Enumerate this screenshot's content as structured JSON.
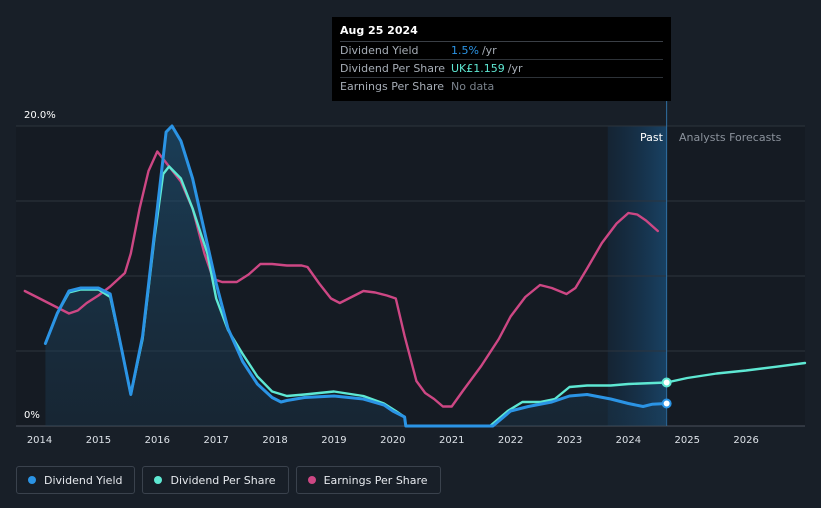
{
  "chart_data": {
    "type": "line",
    "x_range": [
      2013.6,
      2027.0
    ],
    "ylim": [
      0,
      20
    ],
    "y_tick_labels": [
      "20.0%",
      "0%"
    ],
    "x_tick_labels": [
      "2014",
      "2015",
      "2016",
      "2017",
      "2018",
      "2019",
      "2020",
      "2021",
      "2022",
      "2023",
      "2024",
      "2025",
      "2026"
    ],
    "past_label": "Past",
    "forecast_label": "Analysts Forecasts",
    "forecast_start": 2024.65,
    "past_shade_start": 2023.65,
    "series": [
      {
        "name": "Dividend Yield",
        "color": "#2b94e5",
        "points": [
          [
            2014.1,
            5.5
          ],
          [
            2014.3,
            7.5
          ],
          [
            2014.5,
            9.0
          ],
          [
            2014.7,
            9.2
          ],
          [
            2015.0,
            9.2
          ],
          [
            2015.2,
            8.8
          ],
          [
            2015.4,
            5.0
          ],
          [
            2015.55,
            2.1
          ],
          [
            2015.75,
            6.0
          ],
          [
            2016.0,
            14.5
          ],
          [
            2016.15,
            19.6
          ],
          [
            2016.25,
            20.0
          ],
          [
            2016.4,
            19.0
          ],
          [
            2016.6,
            16.5
          ],
          [
            2016.8,
            13.0
          ],
          [
            2017.0,
            9.5
          ],
          [
            2017.2,
            6.5
          ],
          [
            2017.45,
            4.3
          ],
          [
            2017.7,
            2.8
          ],
          [
            2017.95,
            1.9
          ],
          [
            2018.1,
            1.6
          ],
          [
            2018.2,
            1.7
          ],
          [
            2018.5,
            1.9
          ],
          [
            2019.0,
            2.0
          ],
          [
            2019.5,
            1.8
          ],
          [
            2019.85,
            1.4
          ],
          [
            2020.0,
            1.0
          ],
          [
            2020.2,
            0.6
          ],
          [
            2020.22,
            0.0
          ],
          [
            2021.7,
            0.0
          ],
          [
            2022.0,
            1.0
          ],
          [
            2022.3,
            1.3
          ],
          [
            2022.7,
            1.6
          ],
          [
            2023.0,
            2.0
          ],
          [
            2023.3,
            2.1
          ],
          [
            2023.7,
            1.8
          ],
          [
            2024.0,
            1.5
          ],
          [
            2024.25,
            1.3
          ],
          [
            2024.4,
            1.45
          ],
          [
            2024.65,
            1.5
          ]
        ]
      },
      {
        "name": "Dividend Per Share",
        "color": "#5ee8d3",
        "points": [
          [
            2014.1,
            5.5
          ],
          [
            2014.3,
            7.5
          ],
          [
            2014.5,
            8.9
          ],
          [
            2014.7,
            9.1
          ],
          [
            2015.0,
            9.1
          ],
          [
            2015.2,
            8.6
          ],
          [
            2015.4,
            5.0
          ],
          [
            2015.55,
            2.1
          ],
          [
            2015.75,
            5.8
          ],
          [
            2015.95,
            12.5
          ],
          [
            2016.1,
            16.8
          ],
          [
            2016.2,
            17.3
          ],
          [
            2016.4,
            16.5
          ],
          [
            2016.6,
            14.5
          ],
          [
            2016.85,
            11.5
          ],
          [
            2017.0,
            8.5
          ],
          [
            2017.2,
            6.4
          ],
          [
            2017.45,
            4.8
          ],
          [
            2017.7,
            3.3
          ],
          [
            2017.95,
            2.3
          ],
          [
            2018.2,
            2.0
          ],
          [
            2018.5,
            2.1
          ],
          [
            2019.0,
            2.3
          ],
          [
            2019.5,
            2.0
          ],
          [
            2019.85,
            1.5
          ],
          [
            2020.05,
            1.0
          ],
          [
            2020.2,
            0.6
          ],
          [
            2020.22,
            0.0
          ],
          [
            2021.65,
            0.0
          ],
          [
            2021.95,
            1.0
          ],
          [
            2022.2,
            1.6
          ],
          [
            2022.5,
            1.6
          ],
          [
            2022.75,
            1.8
          ],
          [
            2023.0,
            2.6
          ],
          [
            2023.3,
            2.7
          ],
          [
            2023.7,
            2.7
          ],
          [
            2024.0,
            2.8
          ],
          [
            2024.65,
            2.9
          ],
          [
            2025.0,
            3.2
          ],
          [
            2025.5,
            3.5
          ],
          [
            2026.0,
            3.7
          ],
          [
            2026.5,
            3.95
          ],
          [
            2027.0,
            4.2
          ]
        ]
      },
      {
        "name": "Earnings Per Share",
        "color": "#cd4784",
        "points": [
          [
            2013.75,
            9.0
          ],
          [
            2014.0,
            8.5
          ],
          [
            2014.25,
            8.0
          ],
          [
            2014.5,
            7.5
          ],
          [
            2014.65,
            7.7
          ],
          [
            2014.8,
            8.2
          ],
          [
            2015.0,
            8.7
          ],
          [
            2015.2,
            9.3
          ],
          [
            2015.45,
            10.2
          ],
          [
            2015.55,
            11.5
          ],
          [
            2015.7,
            14.5
          ],
          [
            2015.85,
            17.0
          ],
          [
            2016.0,
            18.3
          ],
          [
            2016.2,
            17.3
          ],
          [
            2016.4,
            16.3
          ],
          [
            2016.6,
            14.5
          ],
          [
            2016.8,
            11.5
          ],
          [
            2016.95,
            9.8
          ],
          [
            2017.1,
            9.6
          ],
          [
            2017.35,
            9.6
          ],
          [
            2017.55,
            10.1
          ],
          [
            2017.75,
            10.8
          ],
          [
            2017.95,
            10.8
          ],
          [
            2018.2,
            10.7
          ],
          [
            2018.45,
            10.7
          ],
          [
            2018.55,
            10.6
          ],
          [
            2018.75,
            9.5
          ],
          [
            2018.95,
            8.5
          ],
          [
            2019.1,
            8.2
          ],
          [
            2019.3,
            8.6
          ],
          [
            2019.5,
            9.0
          ],
          [
            2019.7,
            8.9
          ],
          [
            2019.9,
            8.7
          ],
          [
            2020.05,
            8.5
          ],
          [
            2020.2,
            6.0
          ],
          [
            2020.4,
            3.0
          ],
          [
            2020.55,
            2.2
          ],
          [
            2020.7,
            1.8
          ],
          [
            2020.85,
            1.3
          ],
          [
            2021.0,
            1.3
          ],
          [
            2021.2,
            2.4
          ],
          [
            2021.5,
            4.0
          ],
          [
            2021.8,
            5.8
          ],
          [
            2022.0,
            7.3
          ],
          [
            2022.25,
            8.6
          ],
          [
            2022.5,
            9.4
          ],
          [
            2022.7,
            9.2
          ],
          [
            2022.95,
            8.8
          ],
          [
            2023.1,
            9.2
          ],
          [
            2023.3,
            10.5
          ],
          [
            2023.55,
            12.2
          ],
          [
            2023.8,
            13.5
          ],
          [
            2024.0,
            14.2
          ],
          [
            2024.15,
            14.1
          ],
          [
            2024.3,
            13.7
          ],
          [
            2024.5,
            13.0
          ]
        ]
      }
    ],
    "markers": [
      {
        "series": "Dividend Per Share",
        "x": 2024.65,
        "y": 2.9
      },
      {
        "series": "Dividend Yield",
        "x": 2024.65,
        "y": 1.5
      }
    ]
  },
  "tooltip": {
    "date": "Aug 25 2024",
    "rows": [
      {
        "name": "Dividend Yield",
        "value": "1.5%",
        "unit": "/yr",
        "color": "#2b94e5"
      },
      {
        "name": "Dividend Per Share",
        "value": "UK£1.159",
        "unit": "/yr",
        "color": "#5ee8d3"
      },
      {
        "name": "Earnings Per Share",
        "nodata": "No data"
      }
    ]
  },
  "legend": [
    {
      "label": "Dividend Yield",
      "color": "#2b94e5"
    },
    {
      "label": "Dividend Per Share",
      "color": "#5ee8d3"
    },
    {
      "label": "Earnings Per Share",
      "color": "#cd4784"
    }
  ]
}
